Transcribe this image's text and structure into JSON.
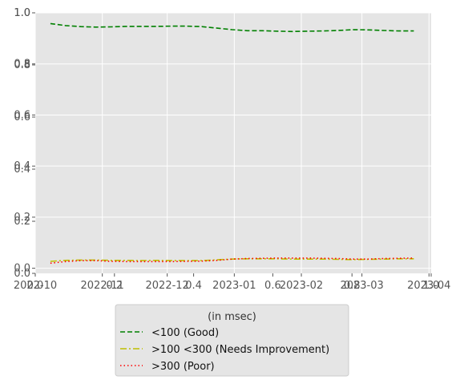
{
  "chart_data": {
    "type": "line",
    "title": "",
    "xlabel": "",
    "ylabel": "",
    "style": "ggplot",
    "grid": true,
    "x_axis_type": "date",
    "xlim": [
      "2022-10-01",
      "2023-04-02"
    ],
    "x_ticks": [
      "2022-10",
      "2022-11",
      "2022-12",
      "2023-01",
      "2023-02",
      "2023-03",
      "2023-04"
    ],
    "ylim": [
      -0.02,
      1.0
    ],
    "y_ticks": [
      "0.0",
      "0.2",
      "0.4",
      "0.6",
      "0.8",
      "1.0"
    ],
    "overlay_axis": {
      "xlim": [
        0.0,
        1.0
      ],
      "ylim": [
        0.0,
        1.0
      ],
      "x_ticks": [
        "0.0",
        "0.2",
        "0.4",
        "0.6",
        "0.8",
        "1.0"
      ],
      "y_ticks": [
        "0.0",
        "0.2",
        "0.4",
        "0.6",
        "0.8",
        "1.0"
      ]
    },
    "legend": {
      "title": "(in msec)",
      "placement": "below chart, centered"
    },
    "x": [
      "2022-10-08",
      "2022-10-15",
      "2022-10-22",
      "2022-10-29",
      "2022-11-05",
      "2022-11-12",
      "2022-11-19",
      "2022-11-26",
      "2022-12-03",
      "2022-12-10",
      "2022-12-17",
      "2022-12-24",
      "2022-12-31",
      "2023-01-07",
      "2023-01-14",
      "2023-01-21",
      "2023-01-28",
      "2023-02-04",
      "2023-02-11",
      "2023-02-18",
      "2023-02-25",
      "2023-03-04",
      "2023-03-11",
      "2023-03-18",
      "2023-03-25"
    ],
    "series": [
      {
        "name": "<100 (Good)",
        "color": "#008000",
        "dash": "dashed",
        "values": [
          0.958,
          0.95,
          0.946,
          0.944,
          0.945,
          0.947,
          0.947,
          0.947,
          0.948,
          0.948,
          0.946,
          0.94,
          0.934,
          0.93,
          0.93,
          0.928,
          0.927,
          0.928,
          0.929,
          0.931,
          0.934,
          0.933,
          0.931,
          0.929,
          0.929
        ]
      },
      {
        "name": ">100  <300 (Needs Improvement)",
        "color": "#bfbf00",
        "dash": "dashdot",
        "values": [
          0.027,
          0.031,
          0.032,
          0.032,
          0.031,
          0.031,
          0.03,
          0.031,
          0.03,
          0.03,
          0.03,
          0.033,
          0.036,
          0.037,
          0.037,
          0.037,
          0.036,
          0.036,
          0.036,
          0.035,
          0.034,
          0.035,
          0.036,
          0.037,
          0.037
        ]
      },
      {
        "name": ">300 (Poor)",
        "color": "#ff0000",
        "dash": "dotted",
        "values": [
          0.02,
          0.026,
          0.03,
          0.03,
          0.027,
          0.026,
          0.026,
          0.026,
          0.026,
          0.027,
          0.028,
          0.031,
          0.036,
          0.038,
          0.039,
          0.04,
          0.04,
          0.04,
          0.039,
          0.038,
          0.036,
          0.036,
          0.038,
          0.039,
          0.04
        ]
      }
    ]
  }
}
